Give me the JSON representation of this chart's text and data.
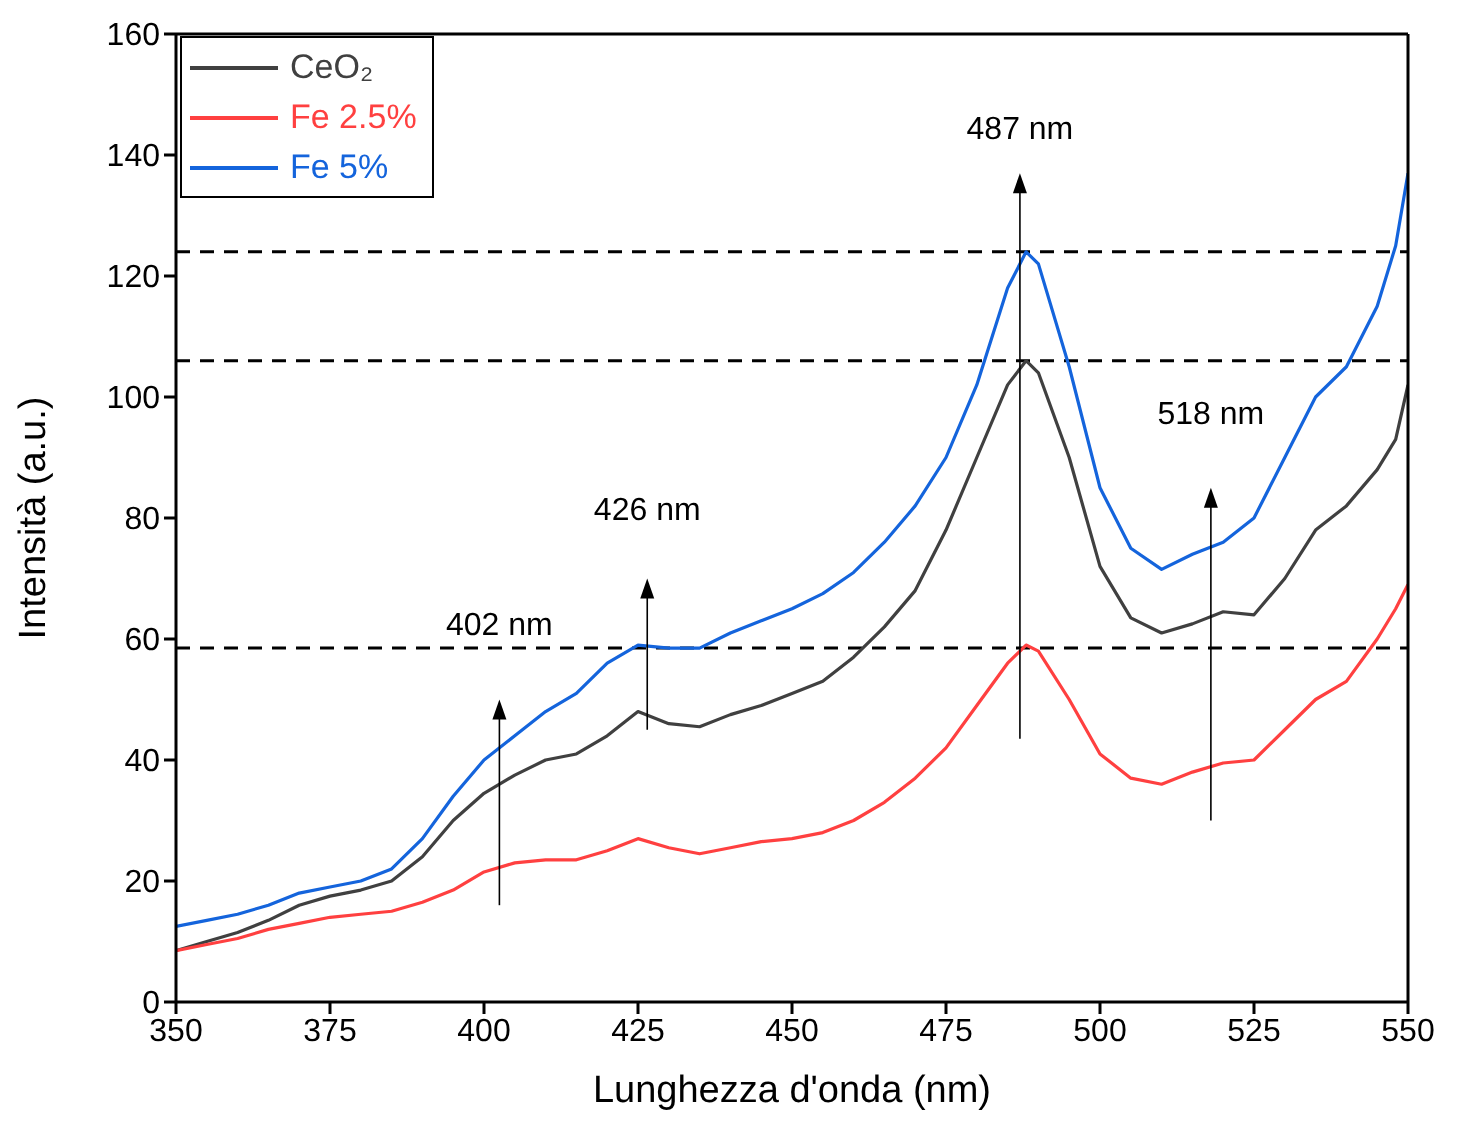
{
  "chart_data": {
    "type": "line",
    "xlabel": "Lunghezza d'onda (nm)",
    "ylabel": "Intensità (a.u.)",
    "x": [
      350,
      355,
      360,
      365,
      370,
      375,
      380,
      385,
      390,
      395,
      400,
      405,
      410,
      415,
      420,
      425,
      430,
      435,
      440,
      445,
      450,
      455,
      460,
      465,
      470,
      475,
      480,
      485,
      488,
      490,
      495,
      500,
      505,
      510,
      515,
      520,
      525,
      530,
      535,
      540,
      545,
      548,
      550
    ],
    "series": [
      {
        "name": "CeO₂",
        "color": "#404040",
        "values": [
          8.5,
          10,
          11.5,
          13.5,
          16,
          17.5,
          18.5,
          20,
          24,
          30,
          34.5,
          37.5,
          40,
          41,
          44,
          48,
          46,
          45.5,
          47.5,
          49,
          51,
          53,
          57,
          62,
          68,
          78,
          90,
          102,
          106,
          104,
          90,
          72,
          63.5,
          61,
          62.5,
          64.5,
          64,
          70,
          78,
          82,
          88,
          93,
          102
        ]
      },
      {
        "name": "Fe 2.5%",
        "color": "#ff4040",
        "values": [
          8.5,
          9.5,
          10.5,
          12,
          13,
          14,
          14.5,
          15,
          16.5,
          18.5,
          21.5,
          23,
          23.5,
          23.5,
          25,
          27,
          25.5,
          24.5,
          25.5,
          26.5,
          27,
          28,
          30,
          33,
          37,
          42,
          49,
          56,
          59,
          58,
          50,
          41,
          37,
          36,
          38,
          39.5,
          40,
          45,
          50,
          53,
          60,
          65,
          69
        ]
      },
      {
        "name": "Fe 5%",
        "color": "#1464dc",
        "values": [
          12.5,
          13.5,
          14.5,
          16,
          18,
          19,
          20,
          22,
          27,
          34,
          40,
          44,
          48,
          51,
          56,
          59,
          58.5,
          58.5,
          61,
          63,
          65,
          67.5,
          71,
          76,
          82,
          90,
          102,
          118,
          124,
          122,
          105,
          85,
          75,
          71.5,
          74,
          76,
          80,
          90,
          100,
          105,
          115,
          125,
          137
        ]
      }
    ],
    "xlim": [
      350,
      550
    ],
    "xticks": [
      350,
      375,
      400,
      425,
      450,
      475,
      500,
      525,
      550
    ],
    "ylim": [
      0,
      160
    ],
    "yticks": [
      0,
      20,
      40,
      60,
      80,
      100,
      120,
      140,
      160
    ],
    "grid": false,
    "legend": "top left",
    "marker": "none",
    "line_style": "solid",
    "ref_lines": [
      {
        "axis": "y",
        "value": 124,
        "line_style": "dashed",
        "color": "#000000"
      },
      {
        "axis": "y",
        "value": 106,
        "line_style": "dashed",
        "color": "#000000"
      },
      {
        "axis": "y",
        "value": 58.5,
        "line_style": "dashed",
        "color": "#000000"
      }
    ],
    "annotations": [
      "402 nm",
      "426 nm",
      "487 nm",
      "518 nm"
    ]
  }
}
